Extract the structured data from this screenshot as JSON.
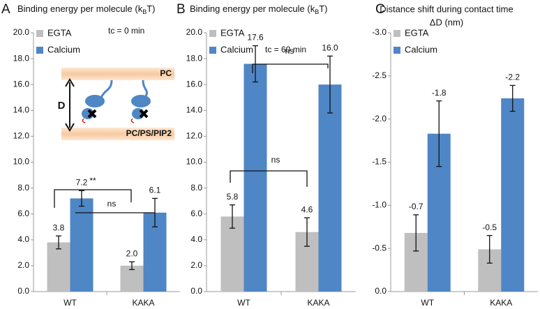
{
  "chart_data": [
    {
      "type": "bar",
      "panel": "A",
      "title": "Binding energy per molecule (k",
      "title_sub": "B",
      "title_end": "T)",
      "subtitle": "tc = 0 min",
      "categories": [
        "WT",
        "KAKA"
      ],
      "series": [
        {
          "name": "EGTA",
          "color": "#bfbfbf",
          "values": [
            3.8,
            2.0
          ],
          "value_labels": [
            "3.8",
            "2.0"
          ],
          "errors": [
            0.5,
            0.3
          ]
        },
        {
          "name": "Calcium",
          "color": "#4f86c6",
          "values": [
            7.2,
            6.1
          ],
          "value_labels": [
            "7.2",
            "6.1"
          ],
          "errors": [
            0.6,
            1.1
          ]
        }
      ],
      "ylim": [
        0,
        20
      ],
      "yticks": [
        {
          "value": 0,
          "label": "0.0"
        },
        {
          "value": 2,
          "label": "2.0"
        },
        {
          "value": 4,
          "label": "4.0"
        },
        {
          "value": 6,
          "label": "6.0"
        },
        {
          "value": 8,
          "label": "8.0"
        },
        {
          "value": 10,
          "label": "10.0"
        },
        {
          "value": 12,
          "label": "12.0"
        },
        {
          "value": 14,
          "label": "14.0"
        },
        {
          "value": 16,
          "label": "16.0"
        },
        {
          "value": 18,
          "label": "18.0"
        },
        {
          "value": 20,
          "label": "20.0"
        }
      ],
      "grid": false,
      "annotations": [
        "**",
        "ns"
      ],
      "diagram_labels": [
        "PC",
        "PC/PS/PIP2",
        "D"
      ]
    },
    {
      "type": "bar",
      "panel": "B",
      "title": "Binding energy per molecule (k",
      "title_sub": "B",
      "title_end": "T)",
      "subtitle": "tc = 60 min",
      "categories": [
        "WT",
        "KAKA"
      ],
      "series": [
        {
          "name": "EGTA",
          "color": "#bfbfbf",
          "values": [
            5.8,
            4.6
          ],
          "value_labels": [
            "5.8",
            "4.6"
          ],
          "errors": [
            0.9,
            1.1
          ]
        },
        {
          "name": "Calcium",
          "color": "#4f86c6",
          "values": [
            17.6,
            16.0
          ],
          "value_labels": [
            "17.6",
            "16.0"
          ],
          "errors": [
            1.4,
            2.2
          ]
        }
      ],
      "ylim": [
        0,
        20
      ],
      "yticks": [
        {
          "value": 0,
          "label": "0.0"
        },
        {
          "value": 2,
          "label": "2.0"
        },
        {
          "value": 4,
          "label": "4.0"
        },
        {
          "value": 6,
          "label": "6.0"
        },
        {
          "value": 8,
          "label": "8.0"
        },
        {
          "value": 10,
          "label": "10.0"
        },
        {
          "value": 12,
          "label": "12.0"
        },
        {
          "value": 14,
          "label": "14.0"
        },
        {
          "value": 16,
          "label": "16.0"
        },
        {
          "value": 18,
          "label": "18.0"
        },
        {
          "value": 20,
          "label": "20.0"
        }
      ],
      "grid": false,
      "annotations": [
        "ns",
        "ns"
      ]
    },
    {
      "type": "bar",
      "panel": "C",
      "title": "Distance shift during contact time",
      "title_line2": "ΔD (nm)",
      "categories": [
        "WT",
        "KAKA"
      ],
      "series": [
        {
          "name": "EGTA",
          "color": "#bfbfbf",
          "values": [
            -0.68,
            -0.49
          ],
          "value_labels": [
            "-0.7",
            "-0.5"
          ],
          "errors": [
            0.21,
            0.16
          ]
        },
        {
          "name": "Calcium",
          "color": "#4f86c6",
          "values": [
            -1.83,
            -2.24
          ],
          "value_labels": [
            "-1.8",
            "-2.2"
          ],
          "errors": [
            0.38,
            0.15
          ]
        }
      ],
      "ylim": [
        0,
        -3
      ],
      "yticks": [
        {
          "value": 0,
          "label": "0.0"
        },
        -0.5,
        {
          "value": -1,
          "label": "-1.0"
        },
        -1.5,
        {
          "value": -2,
          "label": "-2.0"
        },
        -2.5,
        {
          "value": -3,
          "label": "-3.0"
        }
      ],
      "grid": false
    }
  ]
}
